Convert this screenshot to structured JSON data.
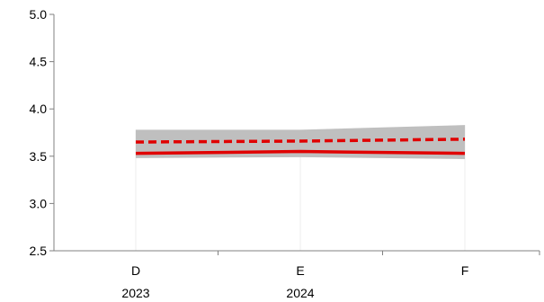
{
  "chart_data": {
    "type": "line",
    "title": "",
    "xlabel": "",
    "ylabel": "",
    "categories": [
      "D",
      "E",
      "F"
    ],
    "category_years": [
      "2023",
      "2024",
      ""
    ],
    "ylim": [
      2.5,
      5.0
    ],
    "yticks": [
      2.5,
      3.0,
      3.5,
      4.0,
      4.5,
      5.0
    ],
    "ytick_labels": [
      "2.5",
      "3.0",
      "3.5",
      "4.0",
      "4.5",
      "5.0"
    ],
    "grid": false,
    "legend": "none",
    "band": {
      "lower": [
        3.48,
        3.49,
        3.47
      ],
      "upper": [
        3.78,
        3.78,
        3.83
      ],
      "color": "#bfbfbf"
    },
    "series": [
      {
        "style": "dashed",
        "color": "#e00000",
        "values": [
          3.65,
          3.66,
          3.68
        ]
      },
      {
        "style": "solid",
        "color": "#e00000",
        "values": [
          3.53,
          3.55,
          3.53
        ]
      }
    ]
  }
}
